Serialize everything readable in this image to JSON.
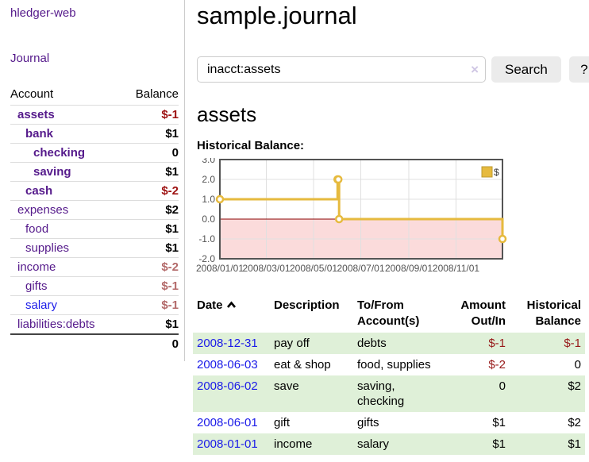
{
  "app": {
    "brand": "hledger-web"
  },
  "sidebar": {
    "nav": {
      "journal_label": "Journal"
    },
    "accounts_table": {
      "headers": {
        "account": "Account",
        "balance": "Balance"
      },
      "rows": [
        {
          "name": "assets",
          "balance": "$-1"
        },
        {
          "name": "bank",
          "balance": "$1"
        },
        {
          "name": "checking",
          "balance": "0"
        },
        {
          "name": "saving",
          "balance": "$1"
        },
        {
          "name": "cash",
          "balance": "$-2"
        },
        {
          "name": "expenses",
          "balance": "$2"
        },
        {
          "name": "food",
          "balance": "$1"
        },
        {
          "name": "supplies",
          "balance": "$1"
        },
        {
          "name": "income",
          "balance": "$-2"
        },
        {
          "name": "gifts",
          "balance": "$-1"
        },
        {
          "name": "salary",
          "balance": "$-1"
        },
        {
          "name": "liabilities:debts",
          "balance": "$1"
        }
      ],
      "total": "0"
    }
  },
  "main": {
    "title": "sample.journal",
    "search": {
      "value": "inacct:assets",
      "clear_icon": "×",
      "button_label": "Search",
      "help_label": "?"
    },
    "account_heading": "assets",
    "chart_heading": "Historical Balance:"
  },
  "chart_data": {
    "type": "line",
    "step": true,
    "title": "Historical Balance",
    "legend_position": "top-right",
    "grid": true,
    "xlim": [
      "2008-01-01",
      "2008-12-31"
    ],
    "ylim": [
      -2,
      3
    ],
    "yticks": [
      "3.0",
      "2.0",
      "1.0",
      "0.0",
      "-1.0",
      "-2.0"
    ],
    "xticks": [
      "2008/01/01",
      "2008/03/01",
      "2008/05/01",
      "2008/07/01",
      "2008/09/01",
      "2008/11/01"
    ],
    "series": [
      {
        "name": "$",
        "color": "#e6ba3e",
        "points": [
          [
            "2008-01-01",
            1
          ],
          [
            "2008-06-01",
            2
          ],
          [
            "2008-06-02",
            2
          ],
          [
            "2008-06-03",
            0
          ],
          [
            "2008-12-31",
            -1
          ]
        ]
      }
    ],
    "negative_region_color": "#fbdbdb",
    "zero_line_color": "#8b0000",
    "border_color": "#545454",
    "grid_color": "#e0e0e0"
  },
  "register_table": {
    "headers": {
      "date": "Date",
      "description": "Description",
      "tofrom": "To/From Account(s)",
      "amount": "Amount Out/In",
      "balance": "Historical Balance"
    },
    "rows": [
      {
        "date": "2008-12-31",
        "description": "pay off",
        "tofrom": "debts",
        "amount": "$-1",
        "balance": "$-1"
      },
      {
        "date": "2008-06-03",
        "description": "eat & shop",
        "tofrom": "food, supplies",
        "amount": "$-2",
        "balance": "0"
      },
      {
        "date": "2008-06-02",
        "description": "save",
        "tofrom": "saving, checking",
        "amount": "0",
        "balance": "$2"
      },
      {
        "date": "2008-06-01",
        "description": "gift",
        "tofrom": "gifts",
        "amount": "$1",
        "balance": "$2"
      },
      {
        "date": "2008-01-01",
        "description": "income",
        "tofrom": "salary",
        "amount": "$1",
        "balance": "$1"
      }
    ]
  }
}
